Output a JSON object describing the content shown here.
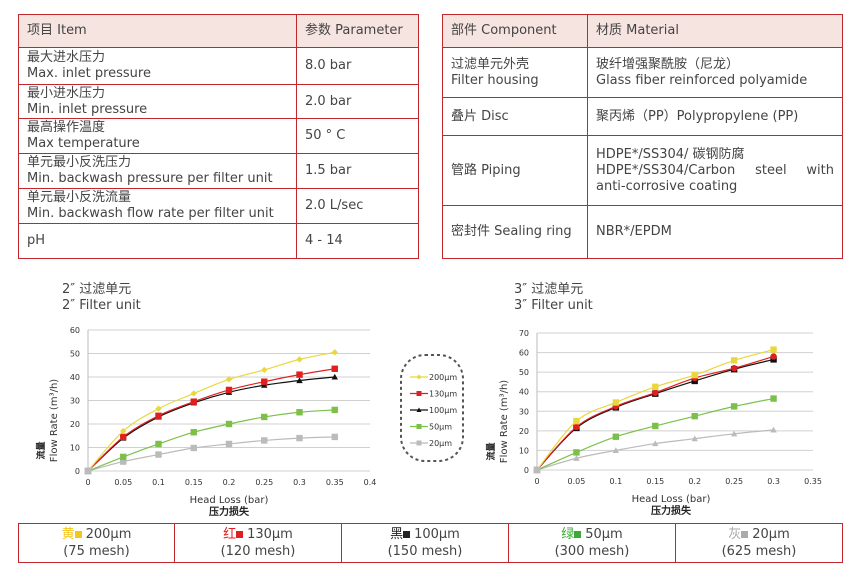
{
  "spec_table": {
    "headers": [
      "项目 Item",
      "参数 Parameter"
    ],
    "rows": [
      {
        "cn": "最大进水压力",
        "en": "Max. inlet pressure",
        "value": "8.0 bar"
      },
      {
        "cn": "最小进水压力",
        "en": "Min. inlet pressure",
        "value": "2.0 bar"
      },
      {
        "cn": "最高操作温度",
        "en": "Max temperature",
        "value": "50 ° C"
      },
      {
        "cn": "单元最小反洗压力",
        "en": "Min. backwash pressure per filter unit",
        "value": "1.5 bar"
      },
      {
        "cn": "单元最小反洗流量",
        "en": "Min. backwash flow rate per filter unit",
        "value": "2.0 L/sec"
      },
      {
        "cn": "pH",
        "en": "",
        "value": "4 - 14"
      }
    ]
  },
  "material_table": {
    "headers": [
      "部件 Component",
      "材质 Material"
    ],
    "rows": [
      {
        "c1": "过滤单元外壳",
        "c2": "Filter housing",
        "m1": "玻纤增强聚酰胺（尼龙）",
        "m2": "Glass fiber reinforced polyamide"
      },
      {
        "c1": "叠片 Disc",
        "c2": "",
        "m1": "聚丙烯（PP）Polypropylene (PP)",
        "m2": ""
      },
      {
        "c1": "管路 Piping",
        "c2": "",
        "m1": "HDPE*/SS304/ 碳钢防腐",
        "m2": "HDPE*/SS304/Carbon steel with anti-corrosive coating"
      },
      {
        "c1": "密封件 Sealing ring",
        "c2": "",
        "m1": "NBR*/EPDM",
        "m2": ""
      }
    ]
  },
  "legend_table": [
    {
      "cn": "黄",
      "label": "200μm",
      "mesh": "(75 mesh)",
      "color": "#f5c518"
    },
    {
      "cn": "红",
      "label": "130μm",
      "mesh": "(120 mesh)",
      "color": "#e02020"
    },
    {
      "cn": "黑",
      "label": "100μm",
      "mesh": "(150 mesh)",
      "color": "#222222"
    },
    {
      "cn": "绿",
      "label": "50μm",
      "mesh": "(300 mesh)",
      "color": "#3aaa35"
    },
    {
      "cn": "灰",
      "label": "20μm",
      "mesh": "(625 mesh)",
      "color": "#aaaaaa"
    }
  ],
  "chart_data": [
    {
      "type": "line",
      "title_cn": "2″ 过滤单元",
      "title_en": "2″ Filter unit",
      "xlabel": "Head Loss (bar)",
      "xlabel_cn": "压力损失",
      "ylabel": "Flow Rate (m³/h)",
      "ylabel_cn": "流量",
      "xlim": [
        0,
        0.4
      ],
      "ylim": [
        0,
        60
      ],
      "xticks": [
        0,
        0.05,
        0.1,
        0.15,
        0.2,
        0.25,
        0.3,
        0.35,
        0.4
      ],
      "yticks": [
        0,
        10,
        20,
        30,
        40,
        50,
        60
      ],
      "grid": true,
      "legend": "right",
      "x": [
        0,
        0.05,
        0.1,
        0.15,
        0.2,
        0.25,
        0.3,
        0.35
      ],
      "series": [
        {
          "name": "200μm",
          "color": "#e8d840",
          "marker": "diamond",
          "values": [
            0,
            17,
            26.5,
            33,
            39,
            43,
            47.5,
            50.5
          ]
        },
        {
          "name": "130μm",
          "color": "#e02020",
          "marker": "square",
          "values": [
            0,
            14.5,
            23.5,
            29.5,
            34.5,
            38,
            41,
            43.5
          ]
        },
        {
          "name": "100μm",
          "color": "#111111",
          "marker": "triangle",
          "values": [
            0,
            14,
            23,
            29,
            33.5,
            36.5,
            38.5,
            40
          ]
        },
        {
          "name": "50μm",
          "color": "#7cc04a",
          "marker": "square",
          "values": [
            0,
            6,
            11.5,
            16.5,
            20,
            23,
            25,
            26
          ]
        },
        {
          "name": "20μm",
          "color": "#bbbbbb",
          "marker": "square",
          "values": [
            0,
            4,
            7,
            9.8,
            11.5,
            13,
            14,
            14.5
          ]
        }
      ]
    },
    {
      "type": "line",
      "title_cn": "3″ 过滤单元",
      "title_en": "3″ Filter unit",
      "xlabel": "Head Loss (bar)",
      "xlabel_cn": "压力损失",
      "ylabel": "Flow Rate (m³/h)",
      "ylabel_cn": "流量",
      "xlim": [
        0,
        0.35
      ],
      "ylim": [
        0,
        70
      ],
      "xticks": [
        0,
        0.05,
        0.1,
        0.15,
        0.2,
        0.25,
        0.3,
        0.35
      ],
      "yticks": [
        0,
        10,
        20,
        30,
        40,
        50,
        60,
        70
      ],
      "grid": true,
      "x": [
        0,
        0.05,
        0.1,
        0.15,
        0.2,
        0.25,
        0.3
      ],
      "series": [
        {
          "name": "200μm",
          "color": "#e8d840",
          "marker": "square",
          "values": [
            0,
            25,
            34.5,
            42.5,
            48.5,
            56,
            61.5
          ]
        },
        {
          "name": "130μm",
          "color": "#e02020",
          "marker": "circle",
          "values": [
            0,
            22,
            32.5,
            39.5,
            47,
            52,
            58
          ]
        },
        {
          "name": "100μm",
          "color": "#111111",
          "marker": "square",
          "values": [
            0,
            21.5,
            32,
            39,
            45.5,
            51.5,
            56.5
          ]
        },
        {
          "name": "50μm",
          "color": "#7cc04a",
          "marker": "square",
          "values": [
            0,
            9,
            17,
            22.5,
            27.5,
            32.5,
            36.5
          ]
        },
        {
          "name": "20μm",
          "color": "#bbbbbb",
          "marker": "triangle",
          "values": [
            0,
            6,
            10,
            13.5,
            16,
            18.5,
            20.5
          ]
        }
      ]
    }
  ]
}
